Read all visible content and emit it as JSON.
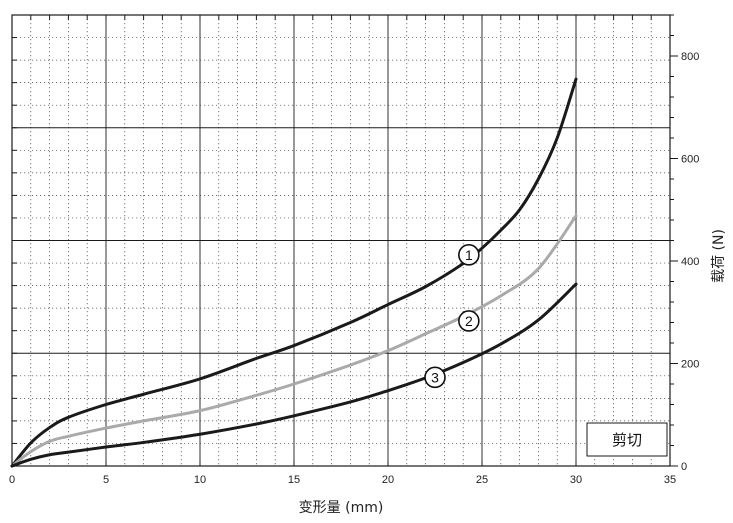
{
  "chart_data": {
    "type": "line",
    "xlabel": "变形量 (mm)",
    "ylabel": "载荷 (N)",
    "xlim": [
      0,
      35
    ],
    "ylim": [
      0,
      880
    ],
    "x_ticks": [
      0,
      5,
      10,
      15,
      20,
      25,
      30,
      35
    ],
    "y_ticks": [
      0,
      200,
      400,
      600,
      800
    ],
    "grid": true,
    "annotation": "剪切",
    "series": [
      {
        "name": "1",
        "color": "#1a1a1a",
        "x": [
          0,
          1,
          2,
          3,
          5,
          7,
          10,
          13,
          15,
          18,
          20,
          22,
          24,
          25,
          26,
          27,
          28,
          29,
          30
        ],
        "y": [
          0,
          45,
          75,
          95,
          120,
          140,
          170,
          210,
          235,
          280,
          315,
          350,
          395,
          425,
          460,
          500,
          560,
          640,
          755
        ]
      },
      {
        "name": "2",
        "color": "#aaaaaa",
        "x": [
          0,
          1,
          2,
          3,
          5,
          7,
          10,
          13,
          15,
          18,
          20,
          22,
          24,
          26,
          28,
          30
        ],
        "y": [
          0,
          28,
          48,
          58,
          74,
          88,
          108,
          138,
          160,
          197,
          225,
          258,
          292,
          332,
          385,
          488
        ]
      },
      {
        "name": "3",
        "color": "#1a1a1a",
        "x": [
          0,
          1,
          2,
          3,
          5,
          7,
          10,
          13,
          15,
          18,
          20,
          22,
          24,
          26,
          28,
          30
        ],
        "y": [
          0,
          13,
          22,
          27,
          37,
          46,
          62,
          82,
          98,
          125,
          147,
          172,
          202,
          238,
          285,
          355
        ]
      }
    ],
    "markers": [
      {
        "label": "1",
        "x": 24.3,
        "y": 412
      },
      {
        "label": "2",
        "x": 24.3,
        "y": 283
      },
      {
        "label": "3",
        "x": 22.5,
        "y": 173
      }
    ]
  }
}
